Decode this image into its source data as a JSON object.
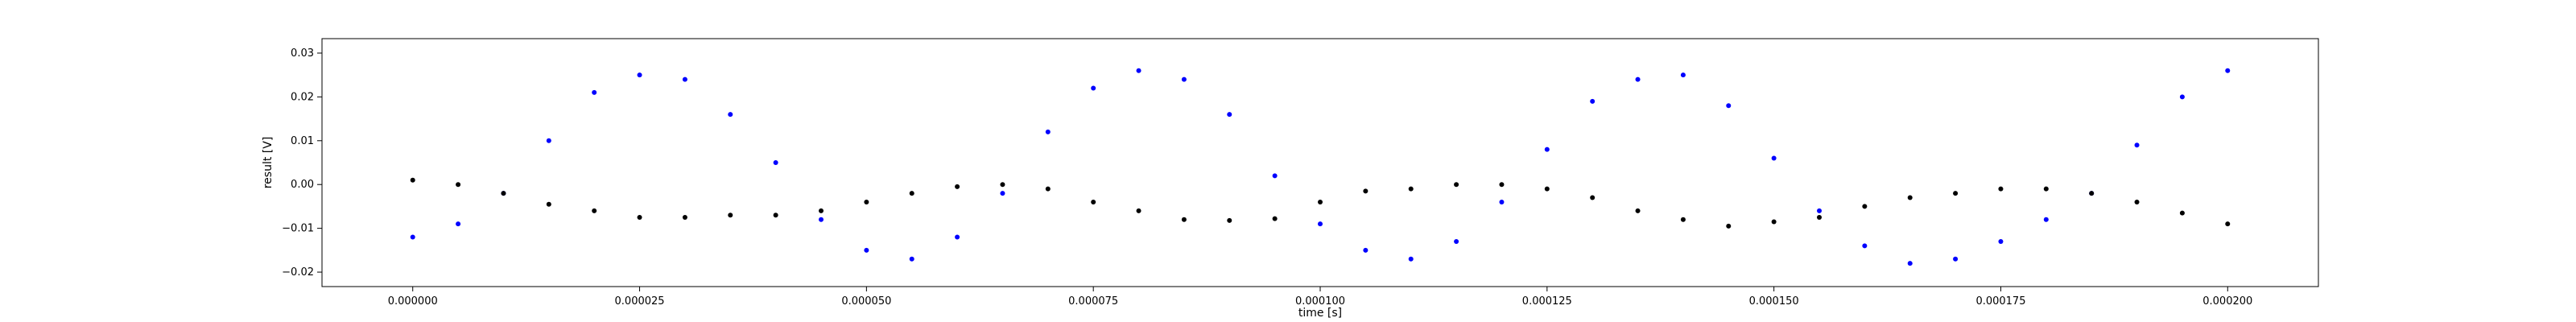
{
  "chart_data": {
    "type": "scatter",
    "title": "",
    "xlabel": "time [s]",
    "ylabel": "result [V]",
    "xlim": [
      -1e-05,
      0.00021
    ],
    "ylim": [
      -0.0233,
      0.0333
    ],
    "grid": false,
    "legend": "none",
    "x_ticks": [
      0.0,
      2.5e-05,
      5e-05,
      7.5e-05,
      0.0001,
      0.000125,
      0.00015,
      0.000175,
      0.0002
    ],
    "x_tick_labels": [
      "0.000000",
      "0.000025",
      "0.000050",
      "0.000075",
      "0.000100",
      "0.000125",
      "0.000150",
      "0.000175",
      "0.000200"
    ],
    "y_ticks": [
      -0.02,
      -0.01,
      0.0,
      0.01,
      0.02,
      0.03
    ],
    "y_tick_labels": [
      "−0.02",
      "−0.01",
      "0.00",
      "0.01",
      "0.02",
      "0.03"
    ],
    "series": [
      {
        "color": "#0000ff",
        "marker": "dot",
        "x": [
          0.0,
          5e-06,
          1e-05,
          1.5e-05,
          2e-05,
          2.5e-05,
          3e-05,
          3.5e-05,
          4e-05,
          4.5e-05,
          5e-05,
          5.5e-05,
          6e-05,
          6.5e-05,
          7e-05,
          7.5e-05,
          8e-05,
          8.5e-05,
          9e-05,
          9.5e-05,
          0.0001,
          0.000105,
          0.00011,
          0.000115,
          0.00012,
          0.000125,
          0.00013,
          0.000135,
          0.00014,
          0.000145,
          0.00015,
          0.000155,
          0.00016,
          0.000165,
          0.00017,
          0.000175,
          0.00018,
          0.000185,
          0.00019,
          0.000195,
          0.0002
        ],
        "y": [
          -0.012,
          -0.009,
          -0.002,
          0.01,
          0.021,
          0.025,
          0.024,
          0.016,
          0.005,
          -0.008,
          -0.015,
          -0.017,
          -0.012,
          -0.002,
          0.012,
          0.022,
          0.026,
          0.024,
          0.016,
          0.002,
          -0.009,
          -0.015,
          -0.017,
          -0.013,
          -0.004,
          0.008,
          0.019,
          0.024,
          0.025,
          0.018,
          0.006,
          -0.006,
          -0.014,
          -0.018,
          -0.017,
          -0.013,
          -0.008,
          -0.002,
          0.009,
          0.02,
          0.026
        ]
      },
      {
        "color": "#000000",
        "marker": "dot",
        "x": [
          0.0,
          5e-06,
          1e-05,
          1.5e-05,
          2e-05,
          2.5e-05,
          3e-05,
          3.5e-05,
          4e-05,
          4.5e-05,
          5e-05,
          5.5e-05,
          6e-05,
          6.5e-05,
          7e-05,
          7.5e-05,
          8e-05,
          8.5e-05,
          9e-05,
          9.5e-05,
          0.0001,
          0.000105,
          0.00011,
          0.000115,
          0.00012,
          0.000125,
          0.00013,
          0.000135,
          0.00014,
          0.000145,
          0.00015,
          0.000155,
          0.00016,
          0.000165,
          0.00017,
          0.000175,
          0.00018,
          0.000185,
          0.00019,
          0.000195,
          0.0002
        ],
        "y": [
          0.001,
          0.0,
          -0.002,
          -0.0045,
          -0.006,
          -0.0075,
          -0.0075,
          -0.007,
          -0.007,
          -0.006,
          -0.004,
          -0.002,
          -0.0005,
          0.0,
          -0.001,
          -0.004,
          -0.006,
          -0.008,
          -0.0082,
          -0.0078,
          -0.004,
          -0.0015,
          -0.001,
          0.0,
          0.0,
          -0.001,
          -0.003,
          -0.006,
          -0.008,
          -0.0095,
          -0.0085,
          -0.0075,
          -0.005,
          -0.003,
          -0.002,
          -0.001,
          -0.001,
          -0.002,
          -0.004,
          -0.0065,
          -0.009
        ]
      }
    ]
  }
}
